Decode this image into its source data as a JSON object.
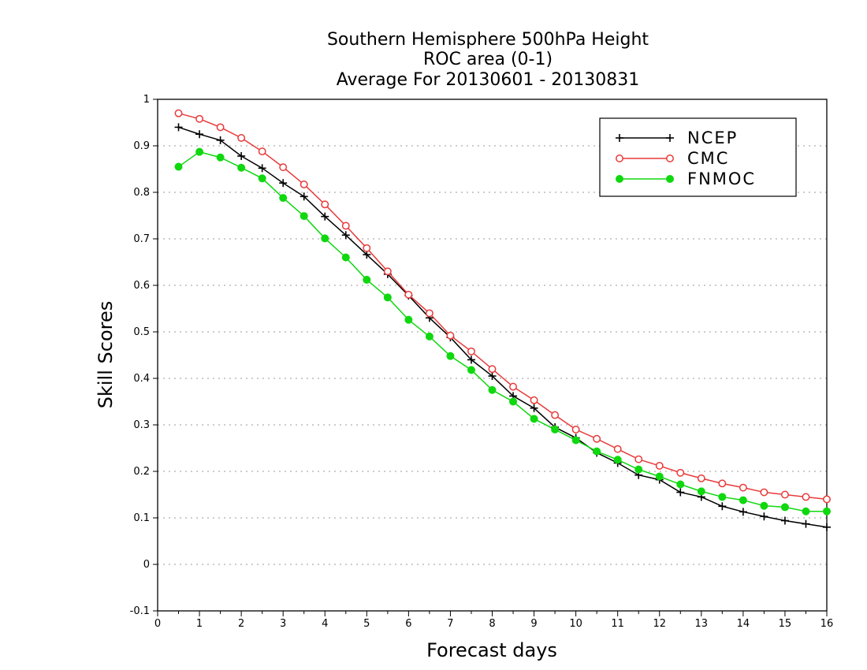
{
  "chart_data": {
    "type": "line",
    "title": [
      "Southern Hemisphere 500hPa Height",
      "ROC area (0-1)",
      "Average For 20130601 - 20130831"
    ],
    "xlabel": "Forecast days",
    "ylabel": "Skill Scores",
    "xlim": [
      0,
      16
    ],
    "ylim": [
      -0.1,
      1
    ],
    "x_ticks": [
      "0",
      "1",
      "2",
      "3",
      "4",
      "5",
      "6",
      "7",
      "8",
      "9",
      "10",
      "11",
      "12",
      "13",
      "14",
      "15",
      "16"
    ],
    "y_ticks": [
      "-0.1",
      "0",
      "0.1",
      "0.2",
      "0.3",
      "0.4",
      "0.5",
      "0.6",
      "0.7",
      "0.8",
      "0.9",
      "1"
    ],
    "grid": true,
    "legend_position": "top-right",
    "x": [
      0.5,
      1,
      1.5,
      2,
      2.5,
      3,
      3.5,
      4,
      4.5,
      5,
      5.5,
      6,
      6.5,
      7,
      7.5,
      8,
      8.5,
      9,
      9.5,
      10,
      10.5,
      11,
      11.5,
      12,
      12.5,
      13,
      13.5,
      14,
      14.5,
      15,
      15.5,
      16
    ],
    "series": [
      {
        "name": "NCEP",
        "color": "#000000",
        "marker": "plus",
        "values": [
          0.94,
          0.925,
          0.912,
          0.878,
          0.852,
          0.82,
          0.791,
          0.748,
          0.708,
          0.666,
          0.624,
          0.578,
          0.53,
          0.488,
          0.44,
          0.405,
          0.362,
          0.336,
          0.295,
          0.272,
          0.24,
          0.218,
          0.192,
          0.182,
          0.155,
          0.145,
          0.125,
          0.113,
          0.103,
          0.094,
          0.087,
          0.08
        ]
      },
      {
        "name": "CMC",
        "color": "#e83a3a",
        "marker": "open-circle",
        "values": [
          0.97,
          0.958,
          0.94,
          0.917,
          0.888,
          0.854,
          0.817,
          0.774,
          0.728,
          0.68,
          0.63,
          0.58,
          0.54,
          0.492,
          0.458,
          0.42,
          0.382,
          0.353,
          0.321,
          0.29,
          0.27,
          0.248,
          0.226,
          0.212,
          0.197,
          0.185,
          0.174,
          0.165,
          0.155,
          0.15,
          0.145,
          0.14
        ]
      },
      {
        "name": "FNMOC",
        "color": "#0fd80f",
        "marker": "filled-circle",
        "values": [
          0.855,
          0.887,
          0.875,
          0.853,
          0.83,
          0.788,
          0.749,
          0.701,
          0.66,
          0.612,
          0.574,
          0.526,
          0.49,
          0.448,
          0.418,
          0.375,
          0.35,
          0.313,
          0.29,
          0.267,
          0.243,
          0.225,
          0.204,
          0.189,
          0.172,
          0.157,
          0.145,
          0.138,
          0.126,
          0.123,
          0.114,
          0.114
        ]
      }
    ]
  }
}
